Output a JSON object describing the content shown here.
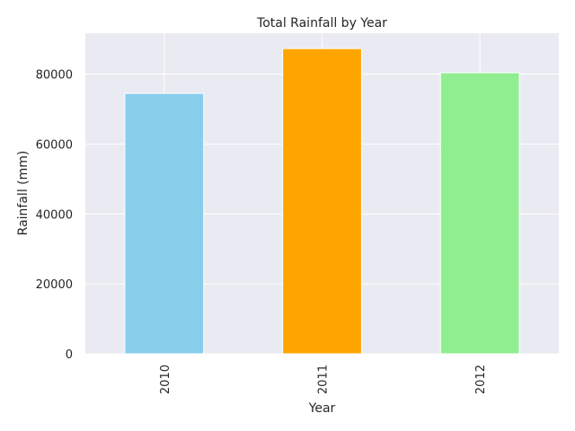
{
  "chart_data": {
    "type": "bar",
    "title": "Total Rainfall by Year",
    "xlabel": "Year",
    "ylabel": "Rainfall (mm)",
    "categories": [
      "2010",
      "2011",
      "2012"
    ],
    "values": [
      74500,
      87300,
      80400
    ],
    "bar_colors": [
      "#87ceeb",
      "#ffa500",
      "#90ee90"
    ],
    "ylim": [
      0,
      91700
    ],
    "yticks": [
      0,
      20000,
      40000,
      60000,
      80000
    ],
    "ytick_labels": [
      "0",
      "20000",
      "40000",
      "60000",
      "80000"
    ],
    "grid": true,
    "background_color": "#eaeaf2",
    "grid_color": "#ffffff"
  }
}
